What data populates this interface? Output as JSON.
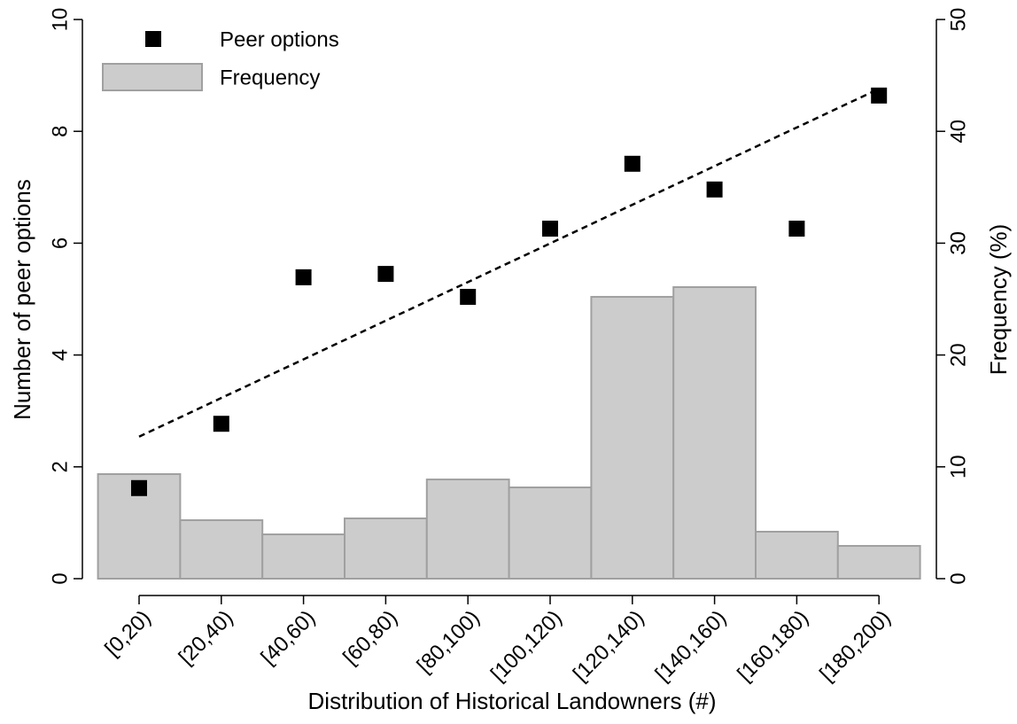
{
  "chart_data": {
    "type": "combo",
    "x_label": "Distribution of Historical Landowners (#)",
    "y_label": "Number of peer options",
    "y2_label": "Frequency (%)",
    "categories": [
      "[0,20)",
      "[20,40)",
      "[40,60)",
      "[60,80)",
      "[80,100)",
      "[100,120)",
      "[120,140)",
      "[140,160)",
      "[160,180)",
      "[180,200)"
    ],
    "series": [
      {
        "name": "Peer options",
        "type": "scatter",
        "color": "#000000",
        "values": [
          1.62,
          2.77,
          5.39,
          5.45,
          5.04,
          6.26,
          7.42,
          6.96,
          6.26,
          8.64
        ]
      },
      {
        "name": "Frequency",
        "type": "bar",
        "axis": "y2",
        "color": "#cccccc",
        "values": [
          9.35,
          5.23,
          3.96,
          5.39,
          8.87,
          8.16,
          25.2,
          26.07,
          4.2,
          2.93
        ]
      }
    ],
    "trend_line": {
      "values": [
        2.54,
        8.76
      ],
      "color": "#000000",
      "style": "dashed"
    },
    "ylim": [
      0,
      10
    ],
    "yticks": [
      0,
      2,
      4,
      6,
      8,
      10
    ],
    "y2lim": [
      0,
      50
    ],
    "y2ticks": [
      0,
      10,
      20,
      30,
      40,
      50
    ],
    "grid": false,
    "legend": "top-left"
  }
}
